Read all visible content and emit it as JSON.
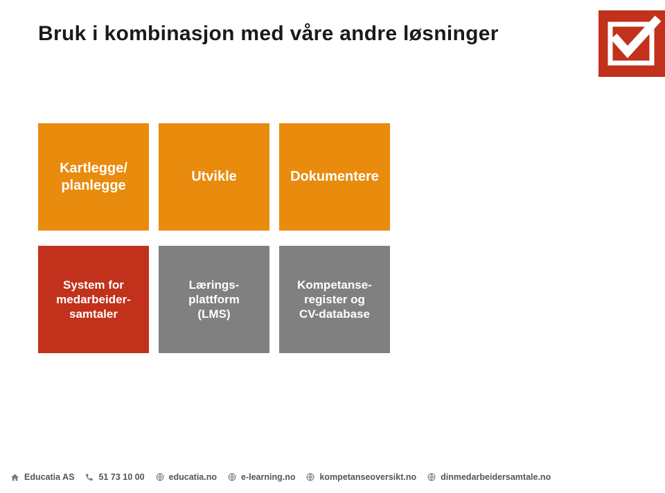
{
  "title": "Bruk i kombinasjon med våre andre løsninger",
  "badge": {
    "bg": "#c1311b",
    "fg": "#ffffff"
  },
  "tiles_row1": [
    {
      "label": "Kartlegge/\nplanlegge",
      "bg": "#e98b0d",
      "fg": "#ffffff",
      "fontsize": 20
    },
    {
      "label": "Utvikle",
      "bg": "#e98b0d",
      "fg": "#ffffff",
      "fontsize": 20
    },
    {
      "label": "Dokumentere",
      "bg": "#e98b0d",
      "fg": "#ffffff",
      "fontsize": 20
    }
  ],
  "tiles_row2": [
    {
      "label": "System for\nmedarbeider-\nsamtaler",
      "bg": "#c1311b",
      "fg": "#ffffff",
      "fontsize": 17
    },
    {
      "label": "Lærings-\nplattform\n(LMS)",
      "bg": "#808080",
      "fg": "#ffffff",
      "fontsize": 17
    },
    {
      "label": "Kompetanse-\nregister og\nCV-database",
      "bg": "#808080",
      "fg": "#ffffff",
      "fontsize": 17
    }
  ],
  "footer": {
    "icon_color": "#7a7a7a",
    "text_color": "#555555",
    "items": [
      {
        "icon": "home",
        "label": "Educatia AS"
      },
      {
        "icon": "phone",
        "label": "51 73 10 00"
      },
      {
        "icon": "globe",
        "label": "educatia.no"
      },
      {
        "icon": "globe",
        "label": "e-learning.no"
      },
      {
        "icon": "globe",
        "label": "kompetanseoversikt.no"
      },
      {
        "icon": "globe",
        "label": "dinmedarbeidersamtale.no"
      }
    ]
  }
}
